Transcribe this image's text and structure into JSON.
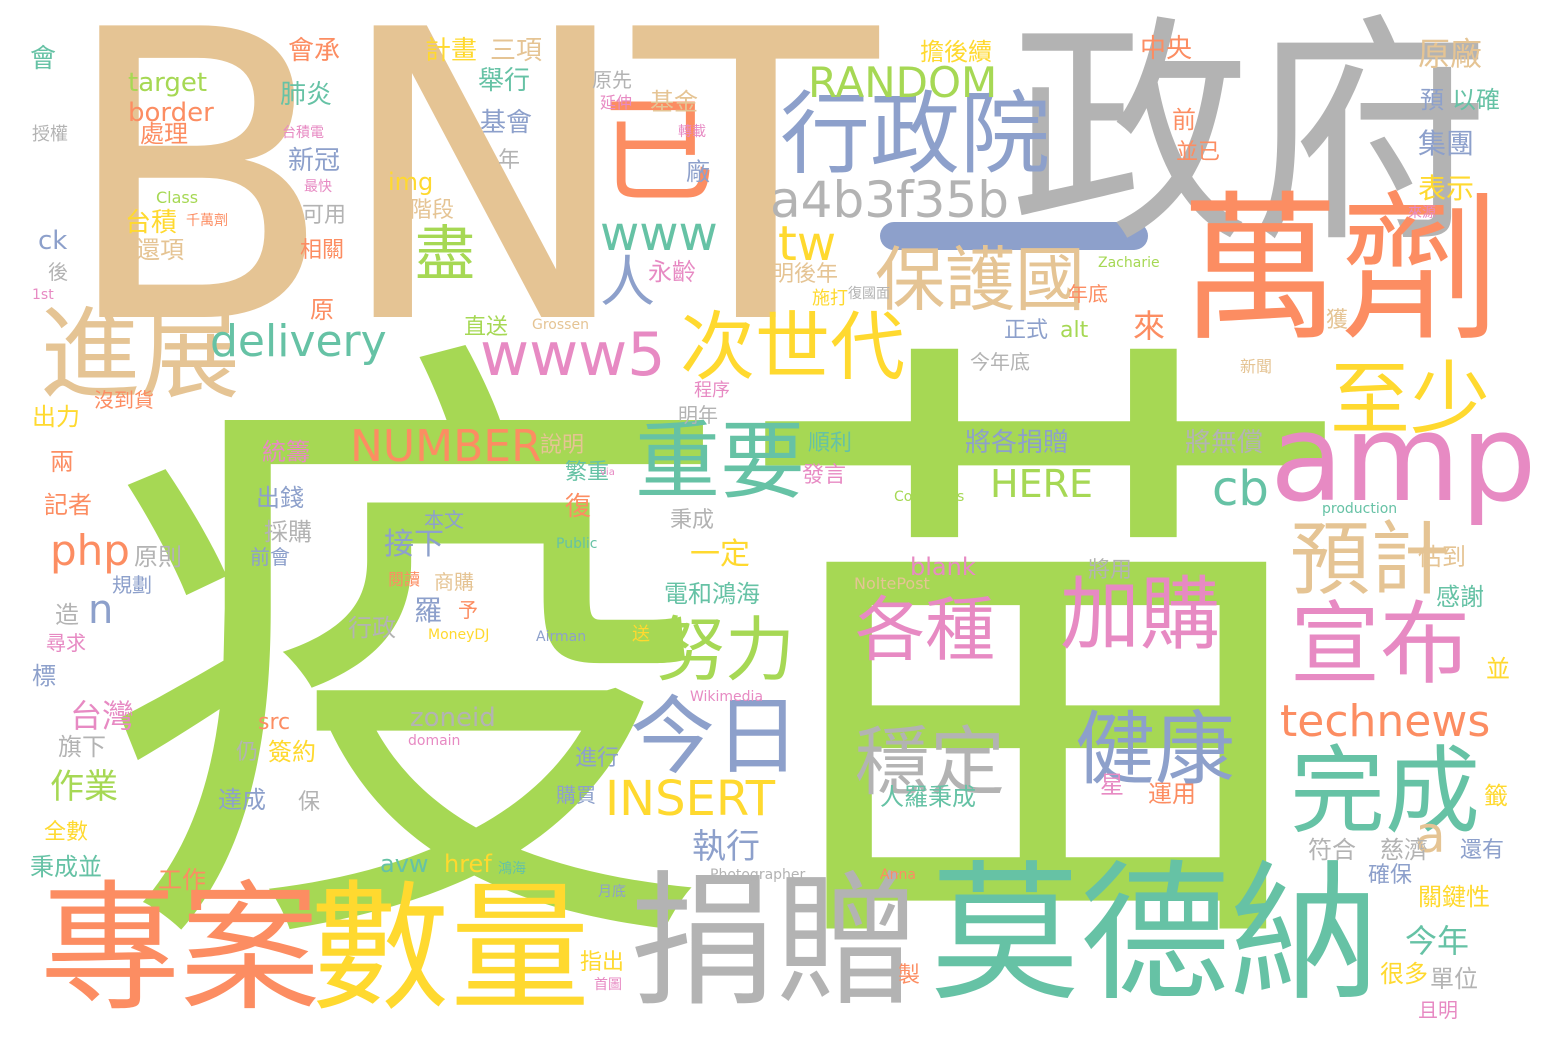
{
  "words": [
    {
      "text": "疫苗",
      "color": "#a6d854"
    },
    {
      "text": "BNT",
      "color": "#e5c494"
    },
    {
      "text": "政府",
      "color": "#b3b3b3"
    },
    {
      "text": "萬劑",
      "color": "#fc8d62"
    },
    {
      "text": "莫德納",
      "color": "#66c2a5"
    },
    {
      "text": "捐贈",
      "color": "#b3b3b3"
    },
    {
      "text": "專案",
      "color": "#fc8d62"
    },
    {
      "text": "數量",
      "color": "#ffd92f"
    },
    {
      "text": "amp",
      "color": "#e78ac3"
    },
    {
      "text": "行政院",
      "color": "#8da0cb"
    },
    {
      "text": "已",
      "color": "#fc8d62"
    },
    {
      "text": "進展",
      "color": "#e5c494"
    },
    {
      "text": "宣布",
      "color": "#e78ac3"
    },
    {
      "text": "完成",
      "color": "#66c2a5"
    },
    {
      "text": "重要",
      "color": "#66c2a5"
    },
    {
      "text": "今日",
      "color": "#8da0cb"
    },
    {
      "text": "加購",
      "color": "#e78ac3"
    },
    {
      "text": "各種",
      "color": "#e78ac3"
    },
    {
      "text": "健康",
      "color": "#8da0cb"
    },
    {
      "text": "穩定",
      "color": "#b3b3b3"
    },
    {
      "text": "預計",
      "color": "#e5c494"
    },
    {
      "text": "至少",
      "color": "#ffd92f"
    },
    {
      "text": "次世代",
      "color": "#ffd92f"
    },
    {
      "text": "保護國",
      "color": "#e5c494"
    },
    {
      "text": "努力",
      "color": "#a6d854"
    },
    {
      "text": "www5",
      "color": "#e78ac3"
    },
    {
      "text": "a4b3f35b",
      "color": "#b3b3b3"
    },
    {
      "text": "RANDOM",
      "color": "#a6d854"
    },
    {
      "text": "technews",
      "color": "#fc8d62"
    },
    {
      "text": "INSERT",
      "color": "#ffd92f"
    },
    {
      "text": "NUMBER",
      "color": "#fc8d62"
    },
    {
      "text": "delivery",
      "color": "#66c2a5"
    },
    {
      "text": "www",
      "color": "#66c2a5"
    },
    {
      "text": "盡",
      "color": "#a6d854"
    },
    {
      "text": "人",
      "color": "#8da0cb"
    },
    {
      "text": "tw",
      "color": "#ffd92f"
    },
    {
      "text": "php",
      "color": "#fc8d62"
    },
    {
      "text": "cb",
      "color": "#66c2a5"
    },
    {
      "text": "a",
      "color": "#e5c494"
    },
    {
      "text": "n",
      "color": "#8da0cb"
    },
    {
      "text": "HERE",
      "color": "#a6d854"
    },
    {
      "text": "原廠",
      "color": "#e5c494"
    },
    {
      "text": "接下",
      "color": "#8da0cb"
    },
    {
      "text": "執行",
      "color": "#8da0cb"
    },
    {
      "text": "台灣",
      "color": "#e78ac3"
    },
    {
      "text": "作業",
      "color": "#a6d854"
    },
    {
      "text": "一定",
      "color": "#ffd92f"
    },
    {
      "text": "今年",
      "color": "#66c2a5"
    },
    {
      "text": "zoneid",
      "color": "#b3b3b3"
    },
    {
      "text": "blank",
      "color": "#e78ac3"
    },
    {
      "text": "將各捐贈",
      "color": "#8da0cb"
    },
    {
      "text": "將無償",
      "color": "#b3b3b3"
    },
    {
      "text": "來",
      "color": "#fc8d62"
    },
    {
      "text": "中央",
      "color": "#fc8d62"
    },
    {
      "text": "集團",
      "color": "#8da0cb"
    },
    {
      "text": "表示",
      "color": "#ffd92f"
    },
    {
      "text": "以確",
      "color": "#66c2a5"
    },
    {
      "text": "預",
      "color": "#8da0cb"
    },
    {
      "text": "計畫",
      "color": "#ffd92f"
    },
    {
      "text": "三項",
      "color": "#e5c494"
    },
    {
      "text": "擔後續",
      "color": "#ffd92f"
    },
    {
      "text": "舉行",
      "color": "#66c2a5"
    },
    {
      "text": "基會",
      "color": "#8da0cb"
    },
    {
      "text": "原先",
      "color": "#b3b3b3"
    },
    {
      "text": "基金",
      "color": "#e5c494"
    },
    {
      "text": "延伸",
      "color": "#e78ac3"
    },
    {
      "text": "會承",
      "color": "#fc8d62"
    },
    {
      "text": "肺炎",
      "color": "#66c2a5"
    },
    {
      "text": "新冠",
      "color": "#8da0cb"
    },
    {
      "text": "target",
      "color": "#a6d854"
    },
    {
      "text": "border",
      "color": "#fc8d62"
    },
    {
      "text": "處理",
      "color": "#fc8d62"
    },
    {
      "text": "授權",
      "color": "#b3b3b3"
    },
    {
      "text": "台積電",
      "color": "#e78ac3"
    },
    {
      "text": "會",
      "color": "#66c2a5"
    },
    {
      "text": "img",
      "color": "#ffd92f"
    },
    {
      "text": "階段",
      "color": "#e5c494"
    },
    {
      "text": "台積",
      "color": "#ffd92f"
    },
    {
      "text": "還項",
      "color": "#e5c494"
    },
    {
      "text": "千萬劑",
      "color": "#fc8d62"
    },
    {
      "text": "可用",
      "color": "#b3b3b3"
    },
    {
      "text": "相關",
      "color": "#fc8d62"
    },
    {
      "text": "最快",
      "color": "#e78ac3"
    },
    {
      "text": "Class",
      "color": "#a6d854"
    },
    {
      "text": "ck",
      "color": "#8da0cb"
    },
    {
      "text": "後",
      "color": "#b3b3b3"
    },
    {
      "text": "1st",
      "color": "#e78ac3"
    },
    {
      "text": "永齡",
      "color": "#e78ac3"
    },
    {
      "text": "明後年",
      "color": "#e5c494"
    },
    {
      "text": "施打",
      "color": "#ffd92f"
    },
    {
      "text": "年底",
      "color": "#fc8d62"
    },
    {
      "text": "Zacharie",
      "color": "#a6d854"
    },
    {
      "text": "Grossen",
      "color": "#e5c494"
    },
    {
      "text": "直送",
      "color": "#a6d854"
    },
    {
      "text": "正式",
      "color": "#8da0cb"
    },
    {
      "text": "alt",
      "color": "#a6d854"
    },
    {
      "text": "今年底",
      "color": "#b3b3b3"
    },
    {
      "text": "獲",
      "color": "#e5c494"
    },
    {
      "text": "新聞",
      "color": "#e5c494"
    },
    {
      "text": "原",
      "color": "#fc8d62"
    },
    {
      "text": "出力",
      "color": "#ffd92f"
    },
    {
      "text": "沒到貨",
      "color": "#fc8d62"
    },
    {
      "text": "程序",
      "color": "#e78ac3"
    },
    {
      "text": "明年",
      "color": "#b3b3b3"
    },
    {
      "text": "說明",
      "color": "#e5c494"
    },
    {
      "text": "順利",
      "color": "#66c2a5"
    },
    {
      "text": "發言",
      "color": "#e78ac3"
    },
    {
      "text": "統籌",
      "color": "#e78ac3"
    },
    {
      "text": "兩",
      "color": "#fc8d62"
    },
    {
      "text": "記者",
      "color": "#fc8d62"
    },
    {
      "text": "繁重",
      "color": "#66c2a5"
    },
    {
      "text": "出錢",
      "color": "#8da0cb"
    },
    {
      "text": "採購",
      "color": "#b3b3b3"
    },
    {
      "text": "本文",
      "color": "#8da0cb"
    },
    {
      "text": "秉成",
      "color": "#b3b3b3"
    },
    {
      "text": "復",
      "color": "#fc8d62"
    },
    {
      "text": "Public",
      "color": "#66c2a5"
    },
    {
      "text": "原則",
      "color": "#b3b3b3"
    },
    {
      "text": "前會",
      "color": "#8da0cb"
    },
    {
      "text": "規劃",
      "color": "#8da0cb"
    },
    {
      "text": "production",
      "color": "#66c2a5"
    },
    {
      "text": "Commons",
      "color": "#a6d854"
    },
    {
      "text": "商購",
      "color": "#e5c494"
    },
    {
      "text": "閱讀",
      "color": "#fc8d62"
    },
    {
      "text": "羅",
      "color": "#8da0cb"
    },
    {
      "text": "予",
      "color": "#fc8d62"
    },
    {
      "text": "電和鴻海",
      "color": "#66c2a5"
    },
    {
      "text": "將用",
      "color": "#b3b3b3"
    },
    {
      "text": "估到",
      "color": "#e5c494"
    },
    {
      "text": "感謝",
      "color": "#66c2a5"
    },
    {
      "text": "NoltePost",
      "color": "#e5c494"
    },
    {
      "text": "造",
      "color": "#b3b3b3"
    },
    {
      "text": "行政",
      "color": "#b3b3b3"
    },
    {
      "text": "MoneyDJ",
      "color": "#ffd92f"
    },
    {
      "text": "Airman",
      "color": "#8da0cb"
    },
    {
      "text": "送",
      "color": "#ffd92f"
    },
    {
      "text": "尋求",
      "color": "#e78ac3"
    },
    {
      "text": "標",
      "color": "#8da0cb"
    },
    {
      "text": "並",
      "color": "#ffd92f"
    },
    {
      "text": "Wikimedia",
      "color": "#e78ac3"
    },
    {
      "text": "src",
      "color": "#fc8d62"
    },
    {
      "text": "旗下",
      "color": "#b3b3b3"
    },
    {
      "text": "domain",
      "color": "#e78ac3"
    },
    {
      "text": "仍",
      "color": "#b3b3b3"
    },
    {
      "text": "簽約",
      "color": "#ffd92f"
    },
    {
      "text": "進行",
      "color": "#8da0cb"
    },
    {
      "text": "人羅秉成",
      "color": "#66c2a5"
    },
    {
      "text": "星",
      "color": "#e78ac3"
    },
    {
      "text": "運用",
      "color": "#fc8d62"
    },
    {
      "text": "籤",
      "color": "#ffd92f"
    },
    {
      "text": "達成",
      "color": "#8da0cb"
    },
    {
      "text": "保",
      "color": "#b3b3b3"
    },
    {
      "text": "購買",
      "color": "#8da0cb"
    },
    {
      "text": "全數",
      "color": "#ffd92f"
    },
    {
      "text": "符合",
      "color": "#b3b3b3"
    },
    {
      "text": "慈濟",
      "color": "#b3b3b3"
    },
    {
      "text": "還有",
      "color": "#8da0cb"
    },
    {
      "text": "avw",
      "color": "#66c2a5"
    },
    {
      "text": "href",
      "color": "#ffd92f"
    },
    {
      "text": "鴻海",
      "color": "#66c2a5"
    },
    {
      "text": "秉成並",
      "color": "#66c2a5"
    },
    {
      "text": "工作",
      "color": "#fc8d62"
    },
    {
      "text": "Photographer",
      "color": "#b3b3b3"
    },
    {
      "text": "Anna",
      "color": "#fc8d62"
    },
    {
      "text": "確保",
      "color": "#8da0cb"
    },
    {
      "text": "關鍵性",
      "color": "#ffd92f"
    },
    {
      "text": "月底",
      "color": "#8da0cb"
    },
    {
      "text": "指出",
      "color": "#ffd92f"
    },
    {
      "text": "首圖",
      "color": "#e78ac3"
    },
    {
      "text": "製",
      "color": "#fc8d62"
    },
    {
      "text": "很多",
      "color": "#ffd92f"
    },
    {
      "text": "單位",
      "color": "#b3b3b3"
    },
    {
      "text": "且明",
      "color": "#e78ac3"
    },
    {
      "text": "廠",
      "color": "#8da0cb"
    },
    {
      "text": "年",
      "color": "#b3b3b3"
    },
    {
      "text": "轉載",
      "color": "#e78ac3"
    },
    {
      "text": "前",
      "color": "#fc8d62"
    },
    {
      "text": "並已",
      "color": "#fc8d62"
    },
    {
      "text": "來源",
      "color": "#e78ac3"
    },
    {
      "text": "復國面",
      "color": "#b3b3b3"
    },
    {
      "text": "via",
      "color": "#e78ac3"
    }
  ]
}
